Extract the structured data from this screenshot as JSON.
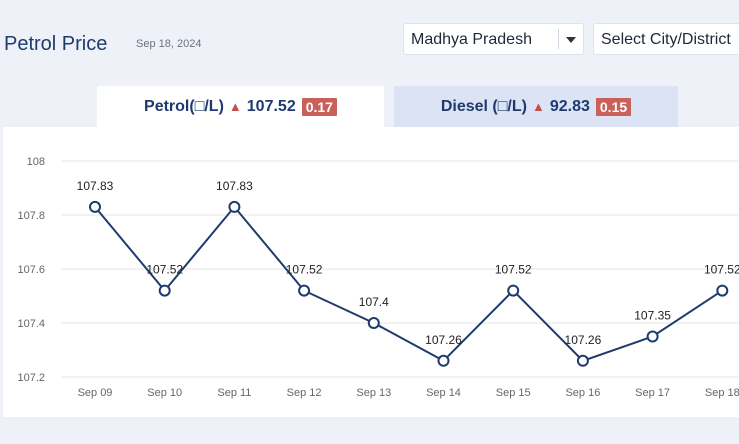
{
  "header": {
    "title": "Petrol Price",
    "date": "Sep 18, 2024",
    "state_select": "Madhya Pradesh",
    "city_select": "Select City/District"
  },
  "tabs": {
    "petrol": {
      "label": "Petrol(□/L)",
      "price": "107.52",
      "change": "0.17"
    },
    "diesel": {
      "label": "Diesel (□/L)",
      "price": "92.83",
      "change": "0.15"
    }
  },
  "colors": {
    "line": "#1f3b6e",
    "up_arrow": "#c0504d",
    "badge": "#c9605a",
    "active_tab": "#ffffff",
    "inactive_tab": "#dbe3f5"
  },
  "chart_data": {
    "type": "line",
    "title": "",
    "xlabel": "",
    "ylabel": "",
    "categories": [
      "Sep 09",
      "Sep 10",
      "Sep 11",
      "Sep 12",
      "Sep 13",
      "Sep 14",
      "Sep 15",
      "Sep 16",
      "Sep 17",
      "Sep 18"
    ],
    "values": [
      107.83,
      107.52,
      107.83,
      107.52,
      107.4,
      107.26,
      107.52,
      107.26,
      107.35,
      107.52
    ],
    "data_labels": [
      "107.83",
      "107.52",
      "107.83",
      "107.52",
      "107.4",
      "107.26",
      "107.52",
      "107.26",
      "107.35",
      "107.52"
    ],
    "ylim": [
      107.2,
      108
    ],
    "yticks": [
      107.2,
      107.4,
      107.6,
      107.8,
      108
    ],
    "ytick_labels": [
      "107.2",
      "107.4",
      "107.6",
      "107.8",
      "108"
    ],
    "grid": true,
    "legend": "none"
  }
}
